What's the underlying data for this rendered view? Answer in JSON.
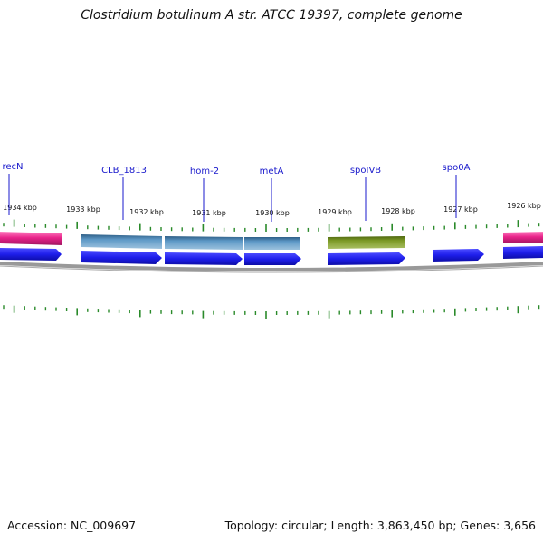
{
  "title": "Clostridium botulinum A str. ATCC 19397, complete genome",
  "footer": {
    "accession": "Accession: NC_009697",
    "summary": "Topology: circular; Length: 3,863,450 bp; Genes: 3,656"
  },
  "colors": {
    "tick": "#2a8a2a",
    "label": "#1a1acc",
    "kbp_label": "#111111",
    "backbone": "#888888",
    "blue_feature": "#1e1eea",
    "pink_feature": "#e8238a",
    "steelblue_feature": "#4a86b6",
    "olive_feature": "#6f8b1f"
  },
  "kbp_labels": [
    "1934 kbp",
    "1933 kbp",
    "1932 kbp",
    "1931 kbp",
    "1930 kbp",
    "1929 kbp",
    "1928 kbp",
    "1927 kbp",
    "1926 kbp"
  ],
  "gene_labels": [
    "recN",
    "CLB_1813",
    "hom-2",
    "metA",
    "spoIVB",
    "spo0A"
  ],
  "features": {
    "top_row": [
      {
        "color": "pink"
      },
      {
        "color": "steelblue"
      },
      {
        "color": "steelblue"
      },
      {
        "color": "steelblue"
      },
      {
        "color": "olive"
      },
      {
        "color": "pink"
      }
    ],
    "bottom_row": [
      {
        "color": "blue"
      },
      {
        "color": "blue"
      },
      {
        "color": "blue"
      },
      {
        "color": "blue"
      },
      {
        "color": "blue"
      },
      {
        "color": "blue"
      },
      {
        "color": "blue"
      }
    ]
  }
}
